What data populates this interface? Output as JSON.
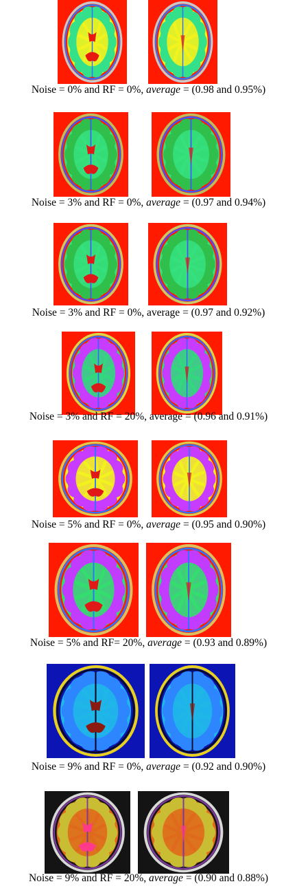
{
  "rows": [
    {
      "caption": {
        "prefix": "Noise = 0% and RF = 0%, ",
        "avg_word": "average",
        "italic": true,
        "suffix": " = (0.98 and 0.95%)"
      },
      "palette": {
        "bg": "#ff1a00",
        "gm": "#34e08a",
        "wm": "#f2f21e",
        "csf": "#e61a10",
        "edge": "#2f74ff",
        "ring": "#c8c8c8"
      },
      "left_scan": "segmentation-image",
      "right_scan": "segmentation-image"
    },
    {
      "caption": {
        "prefix": "Noise = 3% and RF = 0%, ",
        "avg_word": "average",
        "italic": true,
        "suffix": " = (0.97 and 0.94%)"
      },
      "palette": {
        "bg": "#ff1a00",
        "gm": "#2fbf4a",
        "wm": "#35e07d",
        "csf": "#e01818",
        "edge": "#3b58ff",
        "ring": "#bdbd60"
      },
      "left_scan": "segmentation-image",
      "right_scan": "segmentation-image"
    },
    {
      "caption": {
        "prefix": "Noise = 3% and RF = 0%, ",
        "avg_word": "average",
        "italic": false,
        "suffix": " = (0.97 and 0.92%)"
      },
      "palette": {
        "bg": "#ff1a00",
        "gm": "#2fbf4a",
        "wm": "#35e07d",
        "csf": "#e01818",
        "edge": "#4a4cff",
        "ring": "#c9c96a"
      },
      "left_scan": "segmentation-image",
      "right_scan": "segmentation-image"
    },
    {
      "caption": {
        "prefix": "Noise = 3% and RF = 20%, ",
        "avg_word": "average",
        "italic": false,
        "suffix": " = (0.96 and 0.91%)"
      },
      "palette": {
        "bg": "#ff1a00",
        "gm": "#c83cff",
        "wm": "#31d87d",
        "csf": "#d81a18",
        "edge": "#3b64ff",
        "ring": "#d8d84a"
      },
      "left_scan": "segmentation-image",
      "right_scan": "segmentation-image"
    },
    {
      "caption": {
        "prefix": "Noise = 5% and RF = 0%, ",
        "avg_word": "average",
        "italic": true,
        "suffix": " = (0.95 and 0.90%)"
      },
      "palette": {
        "bg": "#ff1a00",
        "gm": "#c83cff",
        "wm": "#f2f21e",
        "csf": "#e01818",
        "edge": "#2f74ff",
        "ring": "#e0c84a"
      },
      "left_scan": "segmentation-image",
      "right_scan": "segmentation-image"
    },
    {
      "caption": {
        "prefix": "Noise = 5% and RF= 20%, ",
        "avg_word": "average",
        "italic": true,
        "suffix": " = (0.93 and 0.89%)"
      },
      "palette": {
        "bg": "#ff1a00",
        "gm": "#c23cff",
        "wm": "#33dd6e",
        "csf": "#e01818",
        "edge": "#2f74ff",
        "ring": "#dcc060"
      },
      "left_scan": "segmentation-image",
      "right_scan": "segmentation-image"
    },
    {
      "caption": {
        "prefix": "Noise = 9% and RF = 0%, ",
        "avg_word": "average",
        "italic": true,
        "suffix": " = (0.92 and 0.90%)"
      },
      "palette": {
        "bg": "#0c14b4",
        "gm": "#2e86ff",
        "wm": "#1fb7e8",
        "csf": "#8b1b10",
        "edge": "#0a0a2a",
        "ring": "#e8d020"
      },
      "left_scan": "segmentation-image",
      "right_scan": "segmentation-image"
    },
    {
      "caption": {
        "prefix": "Noise = 9% and RF = 20%, ",
        "avg_word": "average",
        "italic": true,
        "suffix": " = (0.90 and 0.88%)"
      },
      "palette": {
        "bg": "#141414",
        "gm": "#c9bd34",
        "wm": "#e06a1c",
        "csf": "#ff3a8c",
        "edge": "#7d3a9a",
        "ring": "#d8d8d8"
      },
      "left_scan": "segmentation-image",
      "right_scan": "segmentation-image"
    }
  ]
}
